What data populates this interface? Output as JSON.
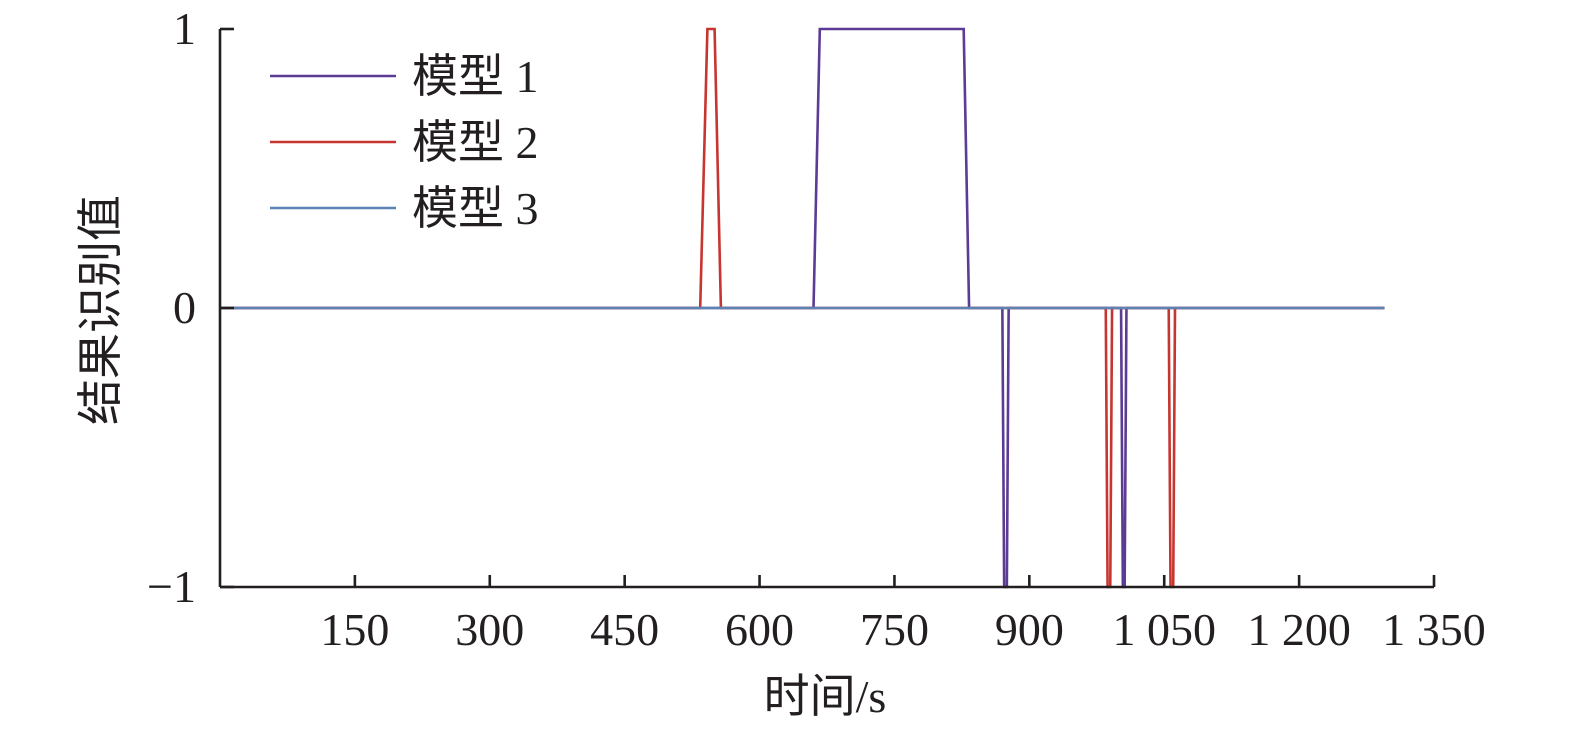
{
  "chart_data": {
    "type": "line",
    "xlabel": "时间/s",
    "ylabel": "结果识别值",
    "xlim": [
      0,
      1350
    ],
    "ylim": [
      -1,
      1
    ],
    "xticks": [
      150,
      300,
      450,
      600,
      750,
      900,
      1050,
      1200,
      1350
    ],
    "xtick_labels": [
      "150",
      "300",
      "450",
      "600",
      "750",
      "900",
      "1 050",
      "1 200",
      "1 350"
    ],
    "yticks": [
      -1,
      0,
      1
    ],
    "ytick_labels": [
      "−1",
      "0",
      "1"
    ],
    "grid": false,
    "legend": "top-left",
    "series": [
      {
        "name": "模型 1",
        "color": "#5b3b93",
        "x": [
          0,
          660,
          667,
          827,
          833,
          870,
          872,
          875,
          877,
          1002,
          1004,
          1006,
          1008,
          1295
        ],
        "y": [
          0,
          0,
          1,
          1,
          0,
          0,
          -1,
          -1,
          0,
          0,
          -1,
          -1,
          0,
          0
        ]
      },
      {
        "name": "模型 2",
        "color": "#c6352f",
        "x": [
          0,
          534,
          542,
          550,
          557,
          985,
          987,
          990,
          992,
          1055,
          1057,
          1060,
          1062,
          1295
        ],
        "y": [
          0,
          0,
          1,
          1,
          0,
          0,
          -1,
          -1,
          0,
          0,
          -1,
          -1,
          0,
          0
        ]
      },
      {
        "name": "模型 3",
        "color": "#5b84b5",
        "x": [
          0,
          1295
        ],
        "y": [
          0,
          0
        ]
      }
    ]
  }
}
